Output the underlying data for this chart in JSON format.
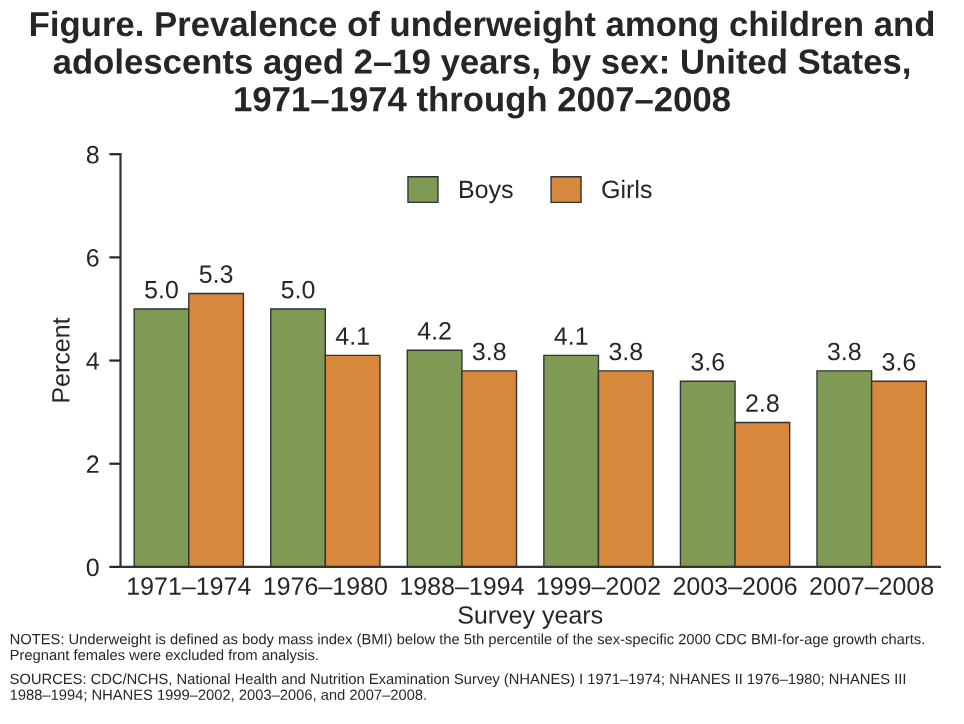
{
  "chart_data": {
    "type": "bar",
    "title": "Figure. Prevalence of underweight among children and adolescents aged 2–19 years, by sex: United States, 1971–1974 through 2007–2008",
    "categories": [
      "1971–1974",
      "1976–1980",
      "1988–1994",
      "1999–2002",
      "2003–2006",
      "2007–2008"
    ],
    "series": [
      {
        "name": "Boys",
        "color": "#7f9a55",
        "values": [
          5.0,
          5.0,
          4.2,
          4.1,
          3.6,
          3.8
        ],
        "value_labels": [
          "5.0",
          "5.0",
          "4.2",
          "4.1",
          "3.6",
          "3.8"
        ]
      },
      {
        "name": "Girls",
        "color": "#d8883d",
        "values": [
          5.3,
          4.1,
          3.8,
          3.8,
          2.8,
          3.6
        ],
        "value_labels": [
          "5.3",
          "4.1",
          "3.8",
          "3.8",
          "2.8",
          "3.6"
        ]
      }
    ],
    "xlabel": "Survey years",
    "ylabel": "Percent",
    "ylim": [
      0,
      8
    ],
    "yticks": [
      0,
      2,
      4,
      6,
      8
    ],
    "grid": false,
    "legend": "top",
    "annotations": [
      "NOTES: Underweight is defined as body mass index (BMI) below the 5th percentile of the sex-specific 2000 CDC BMI-for-age growth charts. Pregnant females were excluded from analysis.",
      "SOURCES: CDC/NCHS, National Health and Nutrition Examination Survey (NHANES) I 1971–1974; NHANES II 1976–1980; NHANES III 1988–1994; NHANES 1999–2002, 2003–2006, and 2007–2008."
    ]
  }
}
